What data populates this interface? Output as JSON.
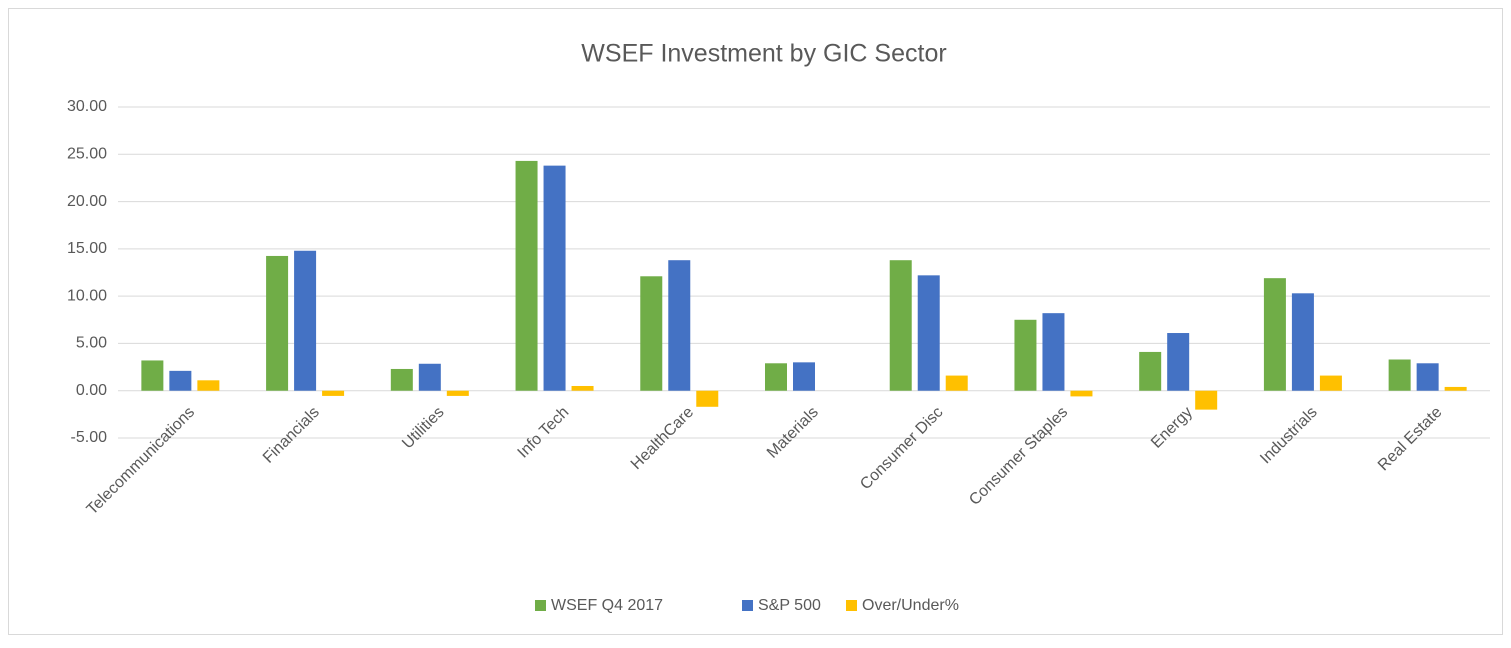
{
  "chart_data": {
    "type": "bar",
    "title": "WSEF Investment by GIC Sector",
    "categories": [
      "Telecommunications",
      "Financials",
      "Utilities",
      "Info Tech",
      "HealthCare",
      "Materials",
      "Consumer Disc",
      "Consumer Staples",
      "Energy",
      "Industrials",
      "Real Estate"
    ],
    "series": [
      {
        "name": "WSEF Q4 2017",
        "color": "#70ad47",
        "values": [
          3.2,
          14.25,
          2.3,
          24.3,
          12.1,
          2.9,
          13.8,
          7.5,
          4.1,
          11.9,
          3.3
        ]
      },
      {
        "name": "S&P 500",
        "color": "#4472c4",
        "values": [
          2.1,
          14.8,
          2.85,
          23.8,
          13.8,
          3.0,
          12.2,
          8.2,
          6.1,
          10.3,
          2.9
        ]
      },
      {
        "name": "Over/Under%",
        "color": "#ffc000",
        "values": [
          1.1,
          -0.55,
          -0.55,
          0.5,
          -1.7,
          0,
          1.6,
          -0.6,
          -2.0,
          1.6,
          0.4
        ]
      }
    ],
    "ylim": [
      -5,
      30
    ],
    "yticks": [
      {
        "value": -5,
        "label": "-5.00"
      },
      {
        "value": 0,
        "label": "0.00"
      },
      {
        "value": 5,
        "label": "5.00"
      },
      {
        "value": 10,
        "label": "10.00"
      },
      {
        "value": 15,
        "label": "15.00"
      },
      {
        "value": 20,
        "label": "20.00"
      },
      {
        "value": 25,
        "label": "25.00"
      },
      {
        "value": 30,
        "label": "30.00"
      }
    ],
    "grid": true,
    "legend": "bottom"
  }
}
